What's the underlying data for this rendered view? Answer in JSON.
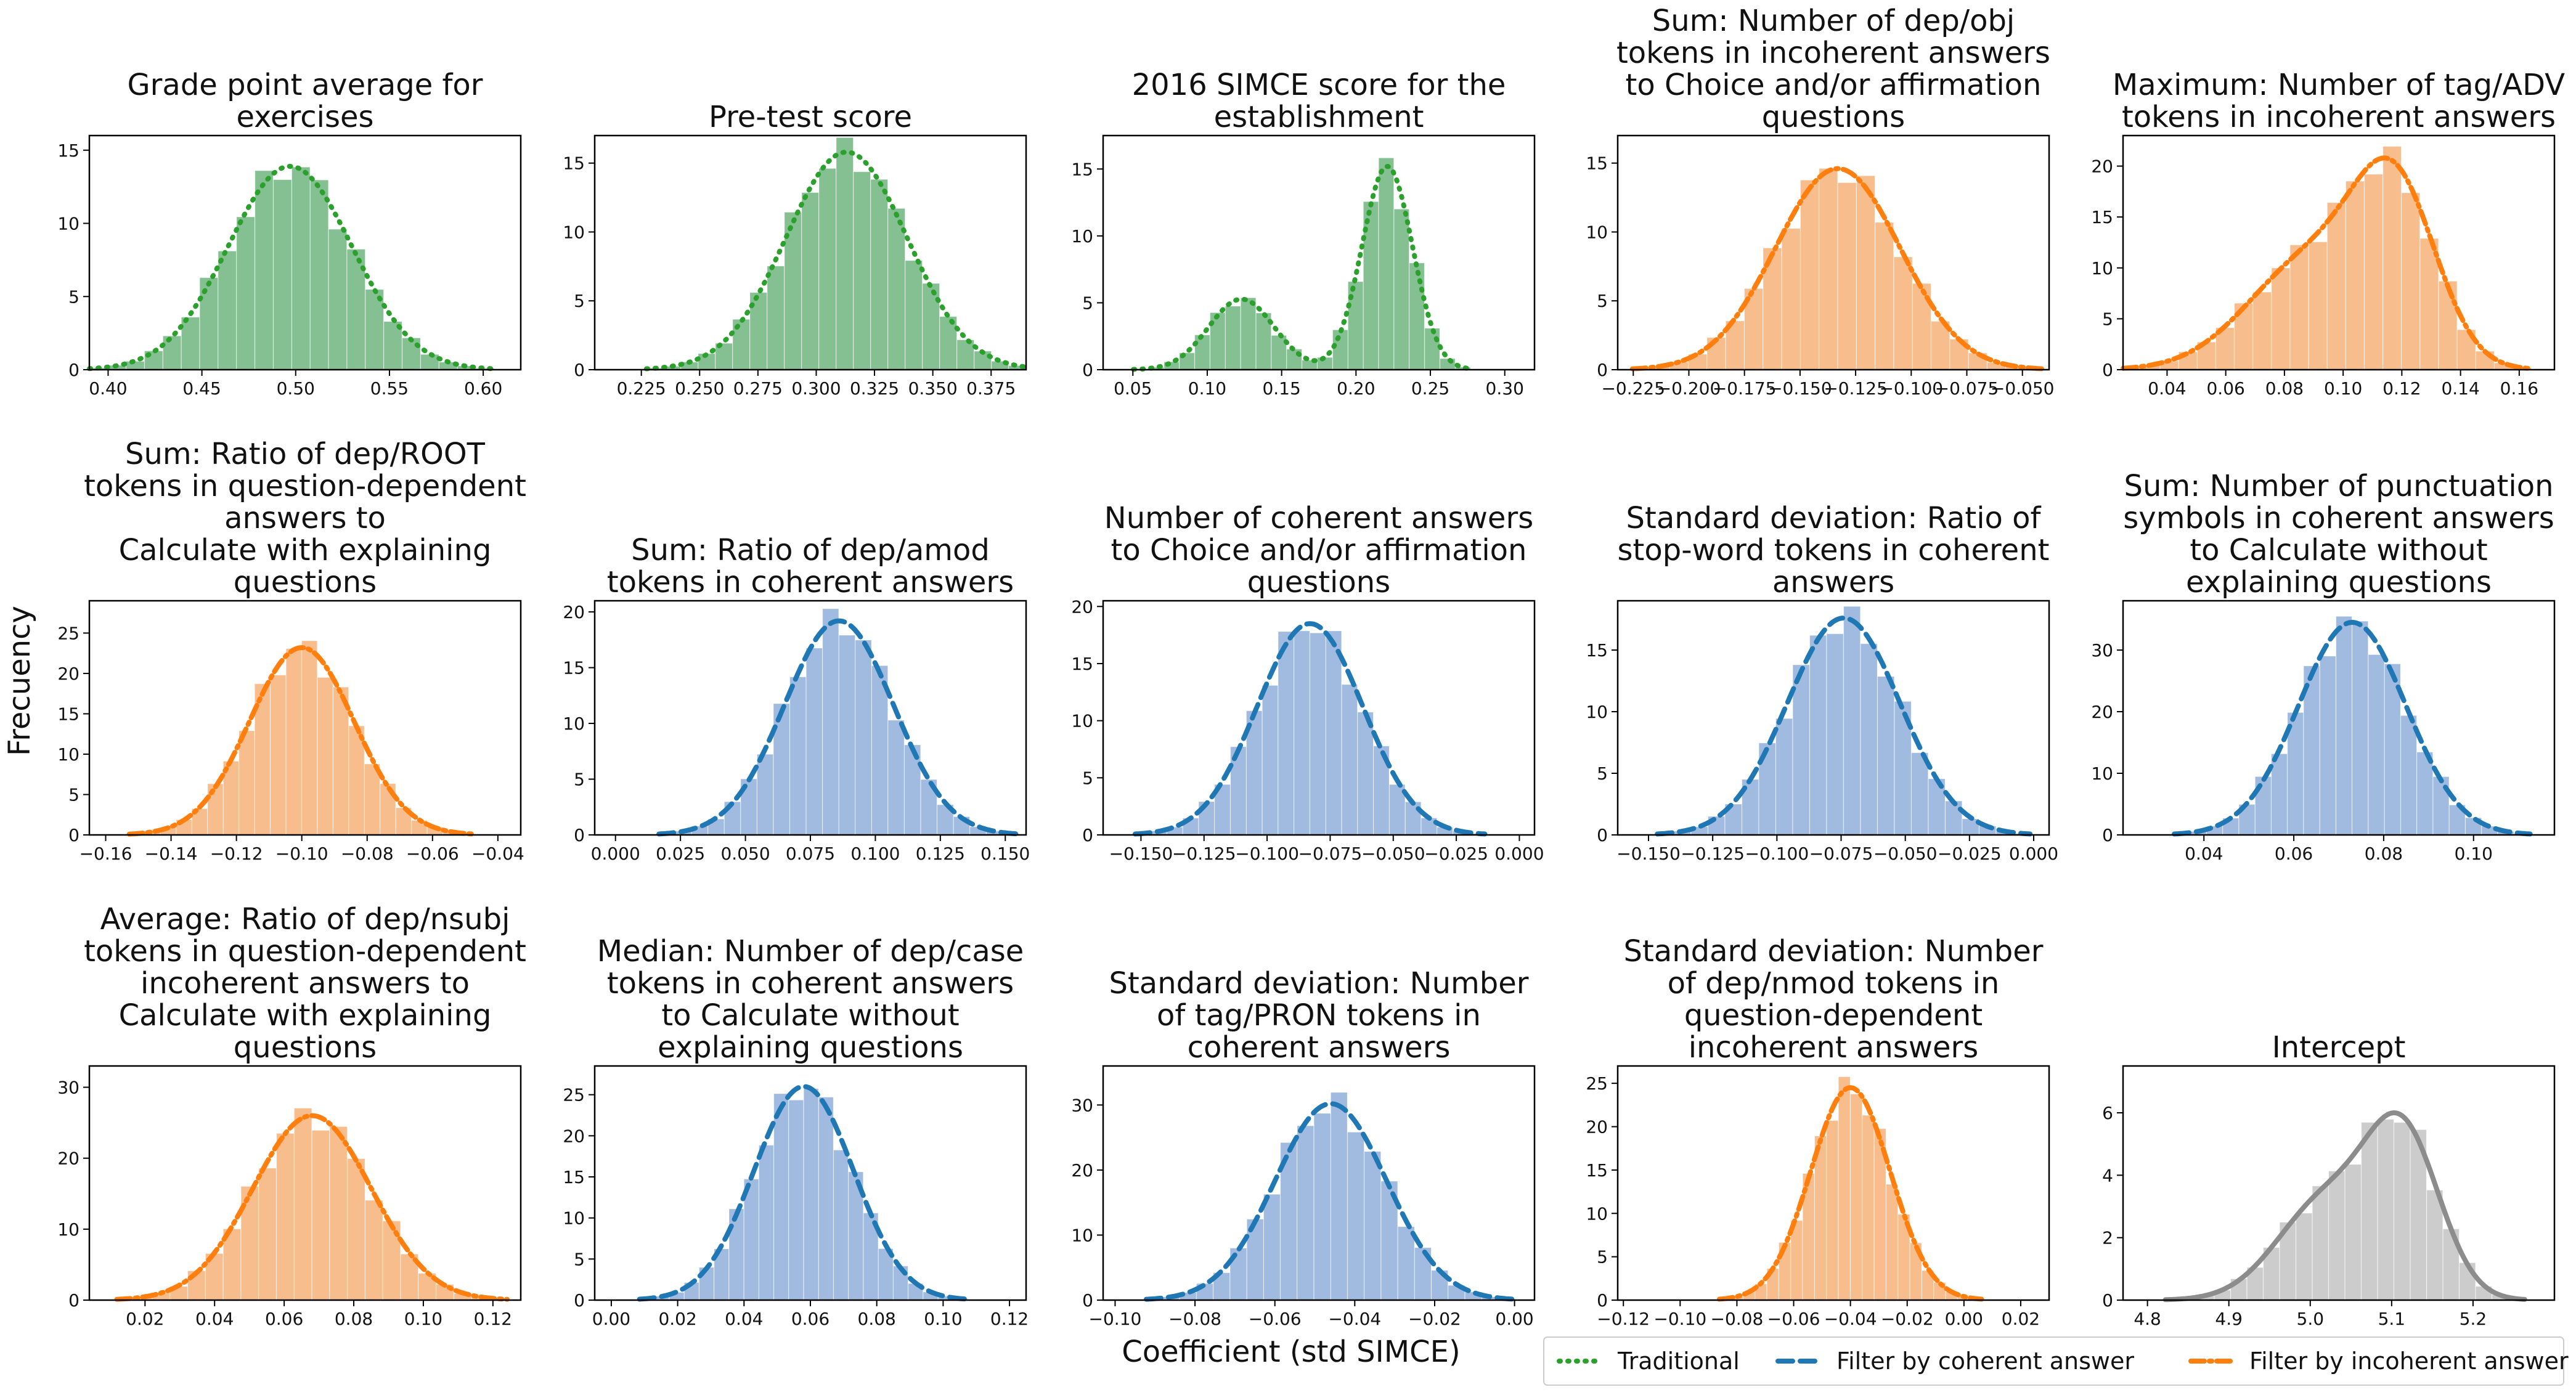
{
  "figure": {
    "ylabel": "Frecuency",
    "xlabel": "Coefficient (std SIMCE)",
    "legend_position": "bottom-right"
  },
  "legend": [
    {
      "label": "Traditional",
      "color": "#2ca02c",
      "style": "dotted"
    },
    {
      "label": "Filter by coherent answer",
      "color": "#1f77b4",
      "style": "dashed"
    },
    {
      "label": "Filter by incoherent answer",
      "color": "#ff7f0e",
      "style": "dashdot"
    }
  ],
  "chart_data": [
    {
      "type": "histogram",
      "title": [
        "Grade point average for",
        "exercises"
      ],
      "group": "Traditional",
      "fill": "#55a868",
      "line": "#2ca02c",
      "dash": "2,12",
      "xlim": [
        0.39,
        0.62
      ],
      "ylim": [
        0,
        16
      ],
      "xticks": [
        {
          "v": 0.4,
          "label": "0.40"
        },
        {
          "v": 0.45,
          "label": "0.45"
        },
        {
          "v": 0.5,
          "label": "0.50"
        },
        {
          "v": 0.55,
          "label": "0.55"
        },
        {
          "v": 0.6,
          "label": "0.60"
        }
      ],
      "yticks": [
        0,
        5,
        10,
        15
      ],
      "kde": [
        {
          "mu": 0.497,
          "sd": 0.033,
          "w": 1
        }
      ],
      "peak": 13.9
    },
    {
      "type": "histogram",
      "title": [
        "Pre-test score"
      ],
      "group": "Traditional",
      "fill": "#55a868",
      "line": "#2ca02c",
      "dash": "2,12",
      "xlim": [
        0.205,
        0.39
      ],
      "ylim": [
        0,
        17
      ],
      "xticks": [
        {
          "v": 0.225,
          "label": "0.225"
        },
        {
          "v": 0.25,
          "label": "0.250"
        },
        {
          "v": 0.275,
          "label": "0.275"
        },
        {
          "v": 0.3,
          "label": "0.300"
        },
        {
          "v": 0.325,
          "label": "0.325"
        },
        {
          "v": 0.35,
          "label": "0.350"
        },
        {
          "v": 0.375,
          "label": "0.375"
        }
      ],
      "yticks": [
        0,
        5,
        10,
        15
      ],
      "kde": [
        {
          "mu": 0.313,
          "sd": 0.026,
          "w": 1
        }
      ],
      "peak": 15.8
    },
    {
      "type": "histogram",
      "title": [
        "2016 SIMCE score for the",
        "establishment"
      ],
      "group": "Traditional",
      "fill": "#55a868",
      "line": "#2ca02c",
      "dash": "2,12",
      "xlim": [
        0.03,
        0.32
      ],
      "ylim": [
        0,
        17.5
      ],
      "xticks": [
        {
          "v": 0.05,
          "label": "0.05"
        },
        {
          "v": 0.1,
          "label": "0.10"
        },
        {
          "v": 0.15,
          "label": "0.15"
        },
        {
          "v": 0.2,
          "label": "0.20"
        },
        {
          "v": 0.25,
          "label": "0.25"
        },
        {
          "v": 0.3,
          "label": "0.30"
        }
      ],
      "yticks": [
        0,
        5,
        10,
        15
      ],
      "kde": [
        {
          "mu": 0.123,
          "sd": 0.022,
          "w": 0.34
        },
        {
          "mu": 0.221,
          "sd": 0.017,
          "w": 0.98
        }
      ],
      "peak": 15.2
    },
    {
      "type": "histogram",
      "title": [
        "Sum: Number of dep/obj",
        "tokens in incoherent answers",
        "to Choice and/or affirmation",
        "questions"
      ],
      "group": "Filter by incoherent answer",
      "fill": "#f4a460",
      "line": "#ff7f0e",
      "dash": "22,8,4,8",
      "xlim": [
        -0.232,
        -0.038
      ],
      "ylim": [
        0,
        17
      ],
      "xticks": [
        {
          "v": -0.225,
          "label": "−0.225"
        },
        {
          "v": -0.2,
          "label": "−0.200"
        },
        {
          "v": -0.175,
          "label": "−0.175"
        },
        {
          "v": -0.15,
          "label": "−0.150"
        },
        {
          "v": -0.125,
          "label": "−0.125"
        },
        {
          "v": -0.1,
          "label": "−0.100"
        },
        {
          "v": -0.075,
          "label": "−0.075"
        },
        {
          "v": -0.05,
          "label": "−0.050"
        }
      ],
      "yticks": [
        0,
        5,
        10,
        15
      ],
      "kde": [
        {
          "mu": -0.133,
          "sd": 0.028,
          "w": 1
        }
      ],
      "peak": 14.6
    },
    {
      "type": "histogram",
      "title": [
        "Maximum: Number of tag/ADV",
        "tokens in incoherent answers"
      ],
      "group": "Filter by incoherent answer",
      "fill": "#f4a460",
      "line": "#ff7f0e",
      "dash": "22,8,4,8",
      "xlim": [
        0.025,
        0.172
      ],
      "ylim": [
        0,
        23
      ],
      "xticks": [
        {
          "v": 0.04,
          "label": "0.04"
        },
        {
          "v": 0.06,
          "label": "0.06"
        },
        {
          "v": 0.08,
          "label": "0.08"
        },
        {
          "v": 0.1,
          "label": "0.10"
        },
        {
          "v": 0.12,
          "label": "0.12"
        },
        {
          "v": 0.14,
          "label": "0.14"
        },
        {
          "v": 0.16,
          "label": "0.16"
        }
      ],
      "yticks": [
        0,
        5,
        10,
        15,
        20
      ],
      "kde": [
        {
          "mu": 0.118,
          "sd": 0.014,
          "w": 0.7
        },
        {
          "mu": 0.09,
          "sd": 0.022,
          "w": 0.5
        }
      ],
      "peak": 20.8
    },
    {
      "type": "histogram",
      "title": [
        "Sum: Ratio of dep/ROOT",
        "tokens in question-dependent",
        "answers to",
        "Calculate with explaining",
        "questions"
      ],
      "group": "Filter by incoherent answer",
      "fill": "#f4a460",
      "line": "#ff7f0e",
      "dash": "22,8,4,8",
      "xlim": [
        -0.165,
        -0.033
      ],
      "ylim": [
        0,
        29
      ],
      "xticks": [
        {
          "v": -0.16,
          "label": "−0.16"
        },
        {
          "v": -0.14,
          "label": "−0.14"
        },
        {
          "v": -0.12,
          "label": "−0.12"
        },
        {
          "v": -0.1,
          "label": "−0.10"
        },
        {
          "v": -0.08,
          "label": "−0.08"
        },
        {
          "v": -0.06,
          "label": "−0.06"
        },
        {
          "v": -0.04,
          "label": "−0.04"
        }
      ],
      "yticks": [
        0,
        5,
        10,
        15,
        20,
        25
      ],
      "kde": [
        {
          "mu": -0.1,
          "sd": 0.016,
          "w": 1
        }
      ],
      "peak": 23.2
    },
    {
      "type": "histogram",
      "title": [
        "Sum: Ratio of dep/amod",
        "tokens in coherent answers"
      ],
      "group": "Filter by coherent answer",
      "fill": "#7b9fd4",
      "line": "#1f77b4",
      "dash": "24,12",
      "xlim": [
        -0.008,
        0.158
      ],
      "ylim": [
        0,
        21
      ],
      "xticks": [
        {
          "v": 0.0,
          "label": "0.000"
        },
        {
          "v": 0.025,
          "label": "0.025"
        },
        {
          "v": 0.05,
          "label": "0.050"
        },
        {
          "v": 0.075,
          "label": "0.075"
        },
        {
          "v": 0.1,
          "label": "0.100"
        },
        {
          "v": 0.125,
          "label": "0.125"
        },
        {
          "v": 0.15,
          "label": "0.150"
        }
      ],
      "yticks": [
        0,
        5,
        10,
        15,
        20
      ],
      "kde": [
        {
          "mu": 0.086,
          "sd": 0.021,
          "w": 1
        }
      ],
      "peak": 19.2
    },
    {
      "type": "histogram",
      "title": [
        "Number of coherent answers",
        "to Choice and/or affirmation",
        "questions"
      ],
      "group": "Filter by coherent answer",
      "fill": "#7b9fd4",
      "line": "#1f77b4",
      "dash": "24,12",
      "xlim": [
        -0.165,
        0.006
      ],
      "ylim": [
        0,
        20.5
      ],
      "xticks": [
        {
          "v": -0.15,
          "label": "−0.150"
        },
        {
          "v": -0.125,
          "label": "−0.125"
        },
        {
          "v": -0.1,
          "label": "−0.100"
        },
        {
          "v": -0.075,
          "label": "−0.075"
        },
        {
          "v": -0.05,
          "label": "−0.050"
        },
        {
          "v": -0.025,
          "label": "−0.025"
        },
        {
          "v": 0.0,
          "label": "0.000"
        }
      ],
      "yticks": [
        0,
        5,
        10,
        15,
        20
      ],
      "kde": [
        {
          "mu": -0.083,
          "sd": 0.021,
          "w": 1
        }
      ],
      "peak": 18.5
    },
    {
      "type": "histogram",
      "title": [
        "Standard deviation: Ratio of",
        "stop-word tokens in coherent",
        "answers"
      ],
      "group": "Filter by coherent answer",
      "fill": "#7b9fd4",
      "line": "#1f77b4",
      "dash": "24,12",
      "xlim": [
        -0.162,
        0.006
      ],
      "ylim": [
        0,
        19
      ],
      "xticks": [
        {
          "v": -0.15,
          "label": "−0.150"
        },
        {
          "v": -0.125,
          "label": "−0.125"
        },
        {
          "v": -0.1,
          "label": "−0.100"
        },
        {
          "v": -0.075,
          "label": "−0.075"
        },
        {
          "v": -0.05,
          "label": "−0.050"
        },
        {
          "v": -0.025,
          "label": "−0.025"
        },
        {
          "v": 0.0,
          "label": "0.000"
        }
      ],
      "yticks": [
        0,
        5,
        10,
        15
      ],
      "kde": [
        {
          "mu": -0.074,
          "sd": 0.022,
          "w": 1
        }
      ],
      "peak": 17.6
    },
    {
      "type": "histogram",
      "title": [
        "Sum: Number of punctuation",
        "symbols in coherent answers",
        "to Calculate without",
        "explaining questions"
      ],
      "group": "Filter by coherent answer",
      "fill": "#7b9fd4",
      "line": "#1f77b4",
      "dash": "24,12",
      "xlim": [
        0.022,
        0.118
      ],
      "ylim": [
        0,
        38
      ],
      "xticks": [
        {
          "v": 0.04,
          "label": "0.04"
        },
        {
          "v": 0.06,
          "label": "0.06"
        },
        {
          "v": 0.08,
          "label": "0.08"
        },
        {
          "v": 0.1,
          "label": "0.10"
        }
      ],
      "yticks": [
        0,
        10,
        20,
        30
      ],
      "kde": [
        {
          "mu": 0.073,
          "sd": 0.012,
          "w": 1
        }
      ],
      "peak": 34.5
    },
    {
      "type": "histogram",
      "title": [
        "Average: Ratio of dep/nsubj",
        "tokens in question-dependent",
        "incoherent answers to",
        "Calculate with explaining",
        "questions"
      ],
      "group": "Filter by incoherent answer",
      "fill": "#f4a460",
      "line": "#ff7f0e",
      "dash": "22,8,4,8",
      "xlim": [
        0.004,
        0.128
      ],
      "ylim": [
        0,
        33
      ],
      "xticks": [
        {
          "v": 0.02,
          "label": "0.02"
        },
        {
          "v": 0.04,
          "label": "0.04"
        },
        {
          "v": 0.06,
          "label": "0.06"
        },
        {
          "v": 0.08,
          "label": "0.08"
        },
        {
          "v": 0.1,
          "label": "0.10"
        },
        {
          "v": 0.12,
          "label": "0.12"
        }
      ],
      "yticks": [
        0,
        10,
        20,
        30
      ],
      "kde": [
        {
          "mu": 0.068,
          "sd": 0.017,
          "w": 1
        }
      ],
      "peak": 26
    },
    {
      "type": "histogram",
      "title": [
        "Median: Number of dep/case",
        "tokens in coherent answers",
        "to Calculate without",
        "explaining questions"
      ],
      "group": "Filter by coherent answer",
      "fill": "#7b9fd4",
      "line": "#1f77b4",
      "dash": "24,12",
      "xlim": [
        -0.005,
        0.125
      ],
      "ylim": [
        0,
        28.5
      ],
      "xticks": [
        {
          "v": 0.0,
          "label": "0.00"
        },
        {
          "v": 0.02,
          "label": "0.02"
        },
        {
          "v": 0.04,
          "label": "0.04"
        },
        {
          "v": 0.06,
          "label": "0.06"
        },
        {
          "v": 0.08,
          "label": "0.08"
        },
        {
          "v": 0.1,
          "label": "0.10"
        },
        {
          "v": 0.12,
          "label": "0.12"
        }
      ],
      "yticks": [
        0,
        5,
        10,
        15,
        20,
        25
      ],
      "kde": [
        {
          "mu": 0.058,
          "sd": 0.015,
          "w": 1
        }
      ],
      "peak": 26
    },
    {
      "type": "histogram",
      "title": [
        "Standard deviation: Number",
        "of tag/PRON tokens in",
        "coherent answers"
      ],
      "group": "Filter by coherent answer",
      "fill": "#7b9fd4",
      "line": "#1f77b4",
      "dash": "24,12",
      "xlim": [
        -0.103,
        0.005
      ],
      "ylim": [
        0,
        36
      ],
      "xticks": [
        {
          "v": -0.1,
          "label": "−0.10"
        },
        {
          "v": -0.08,
          "label": "−0.08"
        },
        {
          "v": -0.06,
          "label": "−0.06"
        },
        {
          "v": -0.04,
          "label": "−0.04"
        },
        {
          "v": -0.02,
          "label": "−0.02"
        },
        {
          "v": 0.0,
          "label": "0.00"
        }
      ],
      "yticks": [
        0,
        10,
        20,
        30
      ],
      "kde": [
        {
          "mu": -0.046,
          "sd": 0.014,
          "w": 1
        }
      ],
      "peak": 30.2
    },
    {
      "type": "histogram",
      "title": [
        "Standard deviation: Number",
        "of dep/nmod tokens in",
        "question-dependent",
        "incoherent answers"
      ],
      "group": "Filter by incoherent answer",
      "fill": "#f4a460",
      "line": "#ff7f0e",
      "dash": "22,8,4,8",
      "xlim": [
        -0.122,
        0.03
      ],
      "ylim": [
        0,
        27
      ],
      "xticks": [
        {
          "v": -0.12,
          "label": "−0.12"
        },
        {
          "v": -0.1,
          "label": "−0.10"
        },
        {
          "v": -0.08,
          "label": "−0.08"
        },
        {
          "v": -0.06,
          "label": "−0.06"
        },
        {
          "v": -0.04,
          "label": "−0.04"
        },
        {
          "v": -0.02,
          "label": "−0.02"
        },
        {
          "v": 0.0,
          "label": "0.00"
        },
        {
          "v": 0.02,
          "label": "0.02"
        }
      ],
      "yticks": [
        0,
        5,
        10,
        15,
        20,
        25
      ],
      "kde": [
        {
          "mu": -0.04,
          "sd": 0.014,
          "w": 1
        }
      ],
      "peak": 24.5
    },
    {
      "type": "histogram",
      "title": [
        "Intercept"
      ],
      "group": "Intercept",
      "fill": "#b8b8b8",
      "line": "#8c8c8c",
      "dash": "",
      "xlim": [
        4.77,
        5.3
      ],
      "ylim": [
        0,
        7.5
      ],
      "xticks": [
        {
          "v": 4.8,
          "label": "4.8"
        },
        {
          "v": 4.9,
          "label": "4.9"
        },
        {
          "v": 5.0,
          "label": "5.0"
        },
        {
          "v": 5.1,
          "label": "5.1"
        },
        {
          "v": 5.2,
          "label": "5.2"
        }
      ],
      "yticks": [
        0,
        2,
        4,
        6
      ],
      "kde": [
        {
          "mu": 5.115,
          "sd": 0.045,
          "w": 0.7
        },
        {
          "mu": 5.02,
          "sd": 0.06,
          "w": 0.45
        }
      ],
      "peak": 6.0
    }
  ]
}
